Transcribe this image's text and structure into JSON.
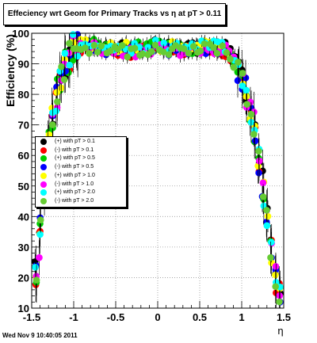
{
  "chart_data": {
    "type": "scatter",
    "title": "Effeciency wrt Geom for Primary Tracks vs   η at pT > 0.11",
    "xlabel": "η",
    "ylabel": "Efficiency (%)",
    "xlim": [
      -1.5,
      1.5
    ],
    "ylim": [
      10,
      100
    ],
    "xticks": [
      "-1.5",
      "-1",
      "-0.5",
      "0",
      "0.5",
      "1",
      "1.5"
    ],
    "yticks": [
      "10",
      "20",
      "30",
      "40",
      "50",
      "60",
      "70",
      "80",
      "90",
      "100"
    ],
    "grid": true,
    "legend_position": "middle-left",
    "series": [
      {
        "name": "(+) with pT > 0.1",
        "color": "#000000"
      },
      {
        "name": "(-) with pT > 0.1",
        "color": "#ff0000"
      },
      {
        "name": "(+) with pT > 0.5",
        "color": "#00cc00"
      },
      {
        "name": "(-) with pT > 0.5",
        "color": "#0000ff"
      },
      {
        "name": "(+) with pT > 1.0",
        "color": "#ffff00"
      },
      {
        "name": "(-) with pT > 1.0",
        "color": "#ff00ff"
      },
      {
        "name": "(+) with pT > 2.0",
        "color": "#00ffff"
      },
      {
        "name": "(-) with pT > 2.0",
        "color": "#66cc33"
      }
    ],
    "shape_points": [
      [
        -1.45,
        21
      ],
      [
        -1.42,
        28
      ],
      [
        -1.39,
        38
      ],
      [
        -1.36,
        46
      ],
      [
        -1.33,
        55
      ],
      [
        -1.3,
        63
      ],
      [
        -1.27,
        69
      ],
      [
        -1.24,
        74
      ],
      [
        -1.21,
        79
      ],
      [
        -1.18,
        82
      ],
      [
        -1.15,
        85
      ],
      [
        -1.12,
        88
      ],
      [
        -1.09,
        90
      ],
      [
        -1.06,
        92
      ],
      [
        -1.03,
        94
      ],
      [
        -1.0,
        95
      ],
      [
        -0.95,
        96
      ],
      [
        -0.85,
        96.5
      ],
      [
        -0.7,
        96
      ],
      [
        -0.5,
        95.5
      ],
      [
        -0.3,
        95
      ],
      [
        -0.15,
        95.5
      ],
      [
        0.0,
        96
      ],
      [
        0.15,
        95.5
      ],
      [
        0.3,
        95
      ],
      [
        0.5,
        95.5
      ],
      [
        0.7,
        96
      ],
      [
        0.8,
        95.5
      ],
      [
        0.85,
        94
      ],
      [
        0.9,
        92
      ],
      [
        0.95,
        89
      ],
      [
        1.0,
        86
      ],
      [
        1.03,
        83
      ],
      [
        1.06,
        80
      ],
      [
        1.09,
        77
      ],
      [
        1.12,
        73
      ],
      [
        1.15,
        69
      ],
      [
        1.18,
        64
      ],
      [
        1.21,
        58
      ],
      [
        1.24,
        52
      ],
      [
        1.27,
        46
      ],
      [
        1.3,
        40
      ],
      [
        1.33,
        34
      ],
      [
        1.36,
        28
      ],
      [
        1.39,
        22
      ],
      [
        1.42,
        18
      ],
      [
        1.45,
        15
      ]
    ]
  },
  "timestamp": "Wed Nov  9 10:40:05 2011"
}
